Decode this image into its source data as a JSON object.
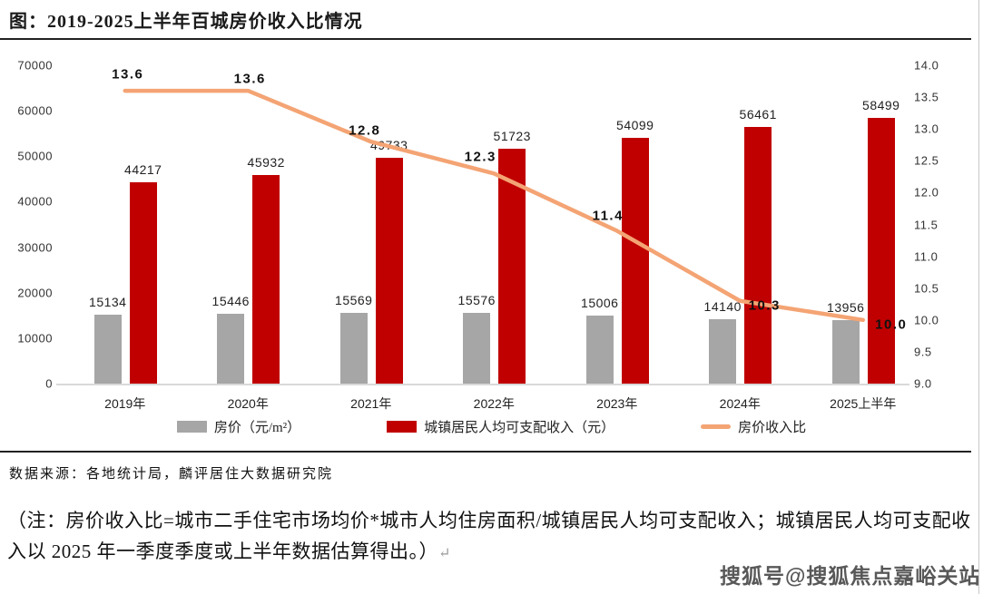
{
  "title": "图：2019-2025上半年百城房价收入比情况",
  "source": "数据来源：各地统计局，麟评居住大数据研究院",
  "note": "（注：房价收入比=城市二手住宅市场均价*城市人均住房面积/城镇居民人均可支配收入；城镇居民人均可支配收入以 2025 年一季度季度或上半年数据估算得出。）",
  "note_mark": "↵",
  "watermark": "搜狐号@搜狐焦点嘉峪关站",
  "colors": {
    "house_price_bar": "#A6A6A6",
    "income_bar": "#C00000",
    "ratio_line": "#F4A474",
    "axis_line": "#D9D9D9",
    "rule": "#222222"
  },
  "chart_data": {
    "type": "bar",
    "categories": [
      "2019年",
      "2020年",
      "2021年",
      "2022年",
      "2023年",
      "2024年",
      "2025上半年"
    ],
    "series": [
      {
        "name": "房价（元/m²）",
        "type": "bar",
        "axis": "left",
        "color": "#A6A6A6",
        "values": [
          15134,
          15446,
          15569,
          15576,
          15006,
          14140,
          13956
        ]
      },
      {
        "name": "城镇居民人均可支配收入（元）",
        "type": "bar",
        "axis": "left",
        "color": "#C00000",
        "values": [
          44217,
          45932,
          49733,
          51723,
          54099,
          56461,
          58499
        ]
      },
      {
        "name": "房价收入比",
        "type": "line",
        "axis": "right",
        "color": "#F4A474",
        "values": [
          13.6,
          13.6,
          12.8,
          12.3,
          11.4,
          10.3,
          10.0
        ]
      }
    ],
    "left_axis": {
      "min": 0,
      "max": 70000,
      "step": 10000,
      "ticks": [
        "0",
        "10000",
        "20000",
        "30000",
        "40000",
        "50000",
        "60000",
        "70000"
      ]
    },
    "right_axis": {
      "min": 9.0,
      "max": 14.0,
      "step": 0.5,
      "ticks": [
        "9.0",
        "9.5",
        "10.0",
        "10.5",
        "11.0",
        "11.5",
        "12.0",
        "12.5",
        "13.0",
        "13.5",
        "14.0"
      ]
    },
    "grid": false,
    "legend_position": "bottom",
    "xlabel": "",
    "ylabel": ""
  }
}
